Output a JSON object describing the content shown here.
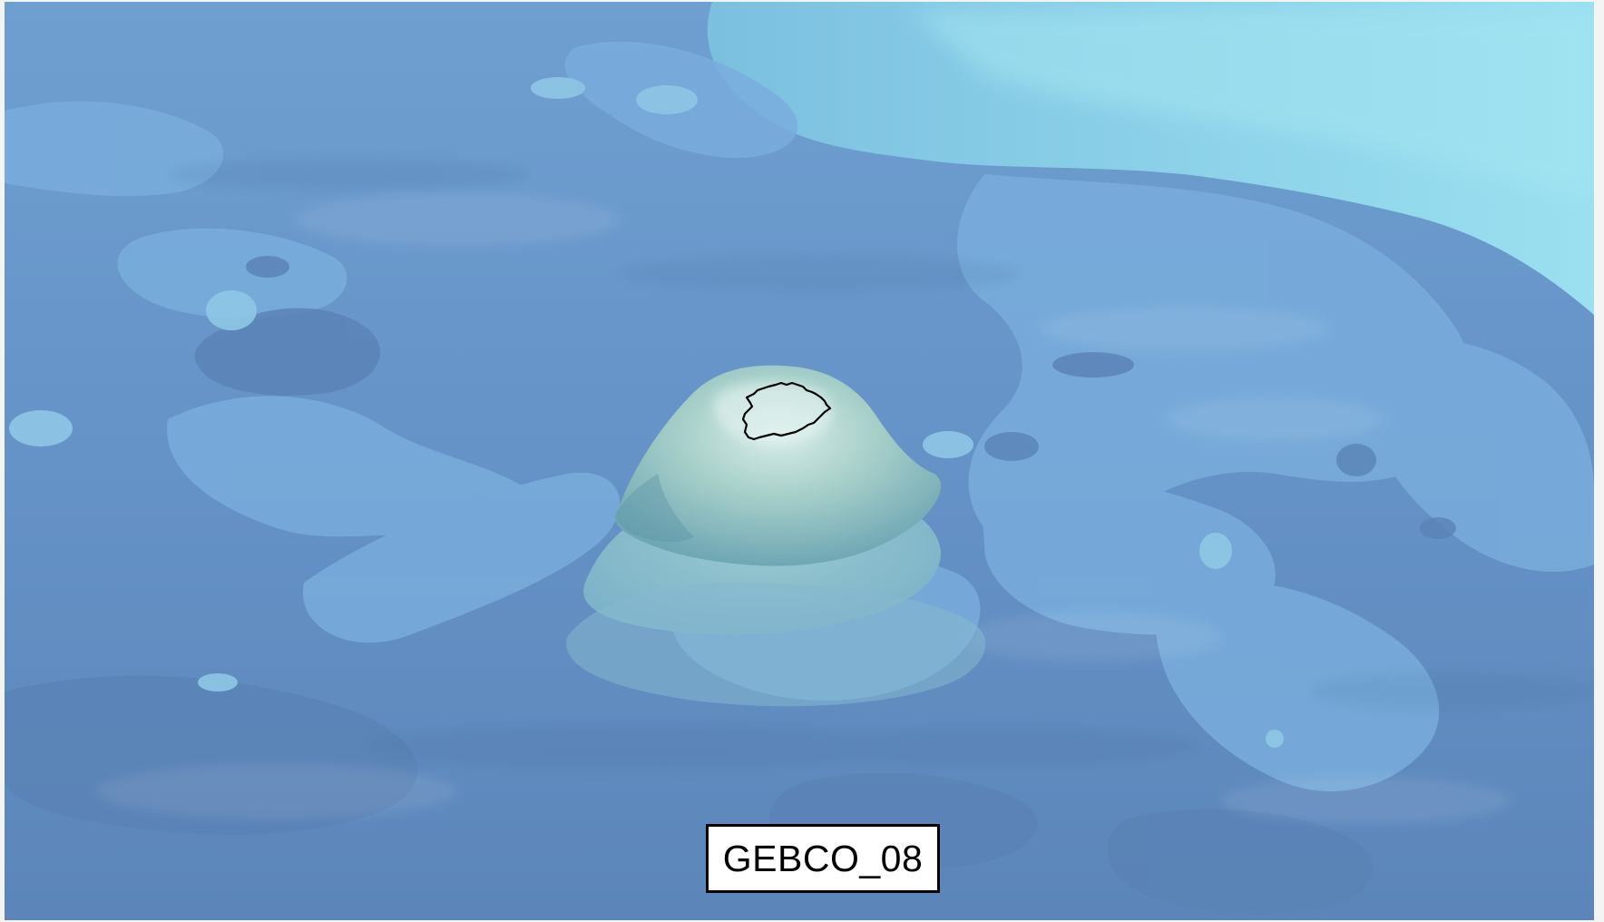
{
  "map": {
    "label": "GEBCO_08",
    "colors": {
      "deep": "#5b87bd",
      "mid": "#6e9ccf",
      "shelf": "#7fb5dc",
      "shallow": "#8fd2e9",
      "island": "#a9cfca",
      "outline": "#000000"
    }
  }
}
